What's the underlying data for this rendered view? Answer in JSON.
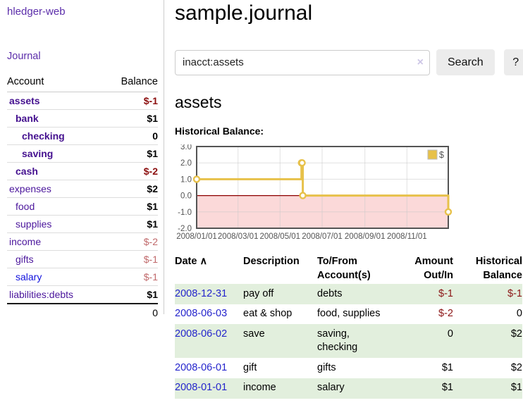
{
  "brand": {
    "label": "hledger-web"
  },
  "nav": {
    "journal": "Journal"
  },
  "sidebar": {
    "headers": {
      "account": "Account",
      "balance": "Balance"
    },
    "accounts": [
      {
        "name": "assets",
        "balance": "$-1",
        "indent": 1,
        "emph": true,
        "bal_class": "neg-strong"
      },
      {
        "name": "bank",
        "balance": "$1",
        "indent": 2,
        "emph": true,
        "bal_class": "pos-strong"
      },
      {
        "name": "checking",
        "balance": "0",
        "indent": 3,
        "emph": true,
        "bal_class": "pos-strong"
      },
      {
        "name": "saving",
        "balance": "$1",
        "indent": 3,
        "emph": true,
        "bal_class": "pos-strong"
      },
      {
        "name": "cash",
        "balance": "$-2",
        "indent": 2,
        "emph": true,
        "bal_class": "neg-strong"
      },
      {
        "name": "expenses",
        "balance": "$2",
        "indent": 1,
        "emph": false,
        "bal_class": "pos-strong"
      },
      {
        "name": "food",
        "balance": "$1",
        "indent": 2,
        "emph": false,
        "bal_class": "pos-strong"
      },
      {
        "name": "supplies",
        "balance": "$1",
        "indent": 2,
        "emph": false,
        "bal_class": "pos-strong"
      },
      {
        "name": "income",
        "balance": "$-2",
        "indent": 1,
        "emph": false,
        "bal_class": "neg-soft"
      },
      {
        "name": "gifts",
        "balance": "$-1",
        "indent": 2,
        "emph": false,
        "bal_class": "neg-soft"
      },
      {
        "name": "salary",
        "balance": "$-1",
        "indent": 2,
        "emph": false,
        "bal_class": "neg-soft",
        "link": "blue"
      },
      {
        "name": "liabilities:debts",
        "balance": "$1",
        "indent": 1,
        "emph": false,
        "bal_class": "pos-strong"
      }
    ],
    "total": "0"
  },
  "header": {
    "title": "sample.journal"
  },
  "search": {
    "value": "inacct:assets",
    "clear": "×",
    "button": "Search",
    "help": "?"
  },
  "account_view": {
    "title": "assets",
    "chart_title": "Historical Balance:"
  },
  "chart_data": {
    "type": "line",
    "step": true,
    "title": "Historical Balance:",
    "x_range": [
      "2008-01-01",
      "2008-12-31"
    ],
    "ylim": [
      -2,
      3
    ],
    "y_ticks": [
      3,
      2,
      1,
      0,
      -1,
      -2
    ],
    "x_ticks": [
      "2008/01/01",
      "2008/03/01",
      "2008/05/01",
      "2008/07/01",
      "2008/09/01",
      "2008/11/01"
    ],
    "series": [
      {
        "name": "$",
        "color": "#e7c14a",
        "points": [
          [
            "2008-01-01",
            1
          ],
          [
            "2008-06-01",
            2
          ],
          [
            "2008-06-02",
            2
          ],
          [
            "2008-06-03",
            0
          ],
          [
            "2008-12-31",
            -1
          ]
        ]
      }
    ],
    "legend": {
      "label": "$",
      "position": "top-right"
    },
    "grid": true,
    "colors": {
      "border": "#545454",
      "gridline": "#c9c9c9",
      "zero_line": "#8c0000",
      "negative_region_fill": "#fbd9d9",
      "marker_fill": "#ffffff",
      "tick_label": "#545454"
    }
  },
  "transactions": {
    "headers": {
      "date": "Date",
      "sort_caret": "∧",
      "description": "Description",
      "accounts_line1": "To/From",
      "accounts_line2": "Account(s)",
      "amount_line1": "Amount",
      "amount_line2": "Out/In",
      "balance_line1": "Historical",
      "balance_line2": "Balance"
    },
    "rows": [
      {
        "date": "2008-12-31",
        "description": "pay off",
        "accounts": "debts",
        "amount": "$-1",
        "amount_neg": true,
        "balance": "$-1",
        "balance_neg": true
      },
      {
        "date": "2008-06-03",
        "description": "eat & shop",
        "accounts": "food, supplies",
        "amount": "$-2",
        "amount_neg": true,
        "balance": "0",
        "balance_neg": false
      },
      {
        "date": "2008-06-02",
        "description": "save",
        "accounts": "saving, checking",
        "amount": "0",
        "amount_neg": false,
        "balance": "$2",
        "balance_neg": false
      },
      {
        "date": "2008-06-01",
        "description": "gift",
        "accounts": "gifts",
        "amount": "$1",
        "amount_neg": false,
        "balance": "$2",
        "balance_neg": false
      },
      {
        "date": "2008-01-01",
        "description": "income",
        "accounts": "salary",
        "amount": "$1",
        "amount_neg": false,
        "balance": "$1",
        "balance_neg": false
      }
    ]
  }
}
